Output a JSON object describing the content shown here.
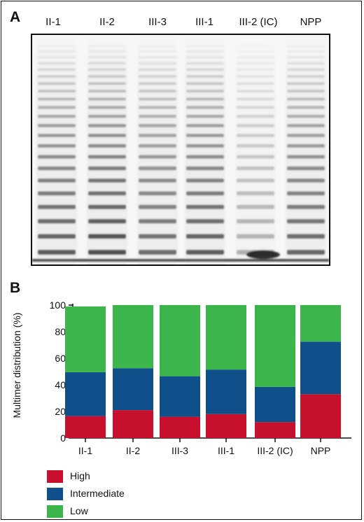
{
  "panels": {
    "a_letter": "A",
    "b_letter": "B"
  },
  "gel": {
    "lanes": [
      "II-1",
      "II-2",
      "III-3",
      "III-1",
      "III-2 (IC)",
      "NPP"
    ]
  },
  "legend": {
    "items": [
      {
        "label": "High",
        "color": "#c8102e"
      },
      {
        "label": "Intermediate",
        "color": "#10508a"
      },
      {
        "label": "Low",
        "color": "#3cb54a"
      }
    ]
  },
  "chart_data": {
    "type": "bar",
    "stacked": true,
    "categories": [
      "II-1",
      "II-2",
      "III-3",
      "III-1",
      "III-2 (IC)",
      "NPP"
    ],
    "series": [
      {
        "name": "High",
        "color": "#c8102e",
        "values": [
          16.5,
          21,
          16,
          18,
          12,
          33
        ]
      },
      {
        "name": "Intermediate",
        "color": "#10508a",
        "values": [
          33,
          31.5,
          30.5,
          33.5,
          26.5,
          39.5
        ]
      },
      {
        "name": "Low",
        "color": "#3cb54a",
        "values": [
          49.5,
          47.5,
          53.5,
          48.5,
          61.5,
          27.5
        ]
      }
    ],
    "ylabel": "Multimer distribution (%)",
    "ylim": [
      0,
      100
    ],
    "yticks": [
      0,
      20,
      40,
      60,
      80,
      100
    ],
    "legend_position": "bottom-left",
    "grid": false
  }
}
